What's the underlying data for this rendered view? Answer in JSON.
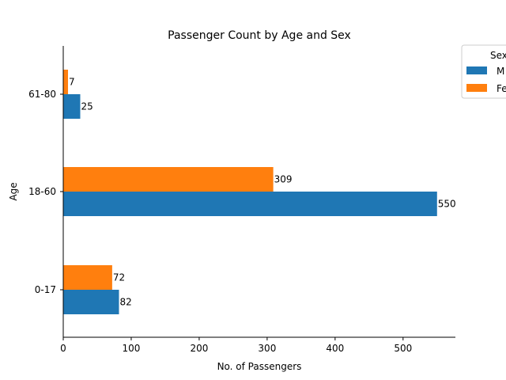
{
  "chart_data": {
    "type": "bar",
    "orientation": "horizontal",
    "title": "Passenger Count by Age and Sex",
    "xlabel": "No. of Passengers",
    "ylabel": "Age",
    "categories": [
      "0-17",
      "18-60",
      "61-80"
    ],
    "series": [
      {
        "name": "M",
        "color": "#1f77b4",
        "values": [
          82,
          550,
          25
        ]
      },
      {
        "name": "Fe",
        "color": "#ff7f0e",
        "values": [
          72,
          309,
          7
        ]
      }
    ],
    "xlim": [
      0,
      577
    ],
    "xticks": [
      0,
      100,
      200,
      300,
      400,
      500
    ],
    "legend": {
      "title": "Sex",
      "placement": "top-right outside"
    },
    "grid": false
  }
}
